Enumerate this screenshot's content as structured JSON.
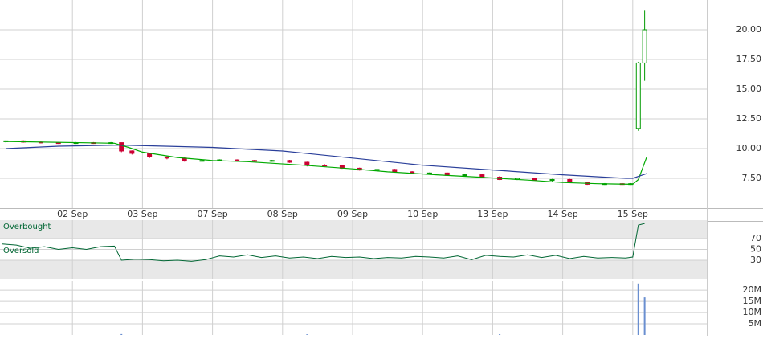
{
  "chart_data": [
    {
      "type": "candlestick",
      "x": [
        0.05,
        0.3,
        0.55,
        0.8,
        1.05,
        1.3,
        1.55,
        1.7,
        1.85,
        2.1,
        2.35,
        2.6,
        2.85,
        3.1,
        3.35,
        3.6,
        3.85,
        4.1,
        4.35,
        4.6,
        4.85,
        5.1,
        5.35,
        5.6,
        5.85,
        6.1,
        6.35,
        6.6,
        6.85,
        7.1,
        7.35,
        7.6,
        7.85,
        8.1,
        8.35,
        8.6,
        8.85,
        8.97,
        9.08,
        9.17
      ],
      "open": [
        10.6,
        10.65,
        10.55,
        10.5,
        10.45,
        10.5,
        10.45,
        10.5,
        9.8,
        9.6,
        9.3,
        9.2,
        8.95,
        9.0,
        9.05,
        9.0,
        8.95,
        9.0,
        8.85,
        8.6,
        8.55,
        8.35,
        8.2,
        8.25,
        8.05,
        7.9,
        7.95,
        7.75,
        7.8,
        7.6,
        7.4,
        7.5,
        7.35,
        7.4,
        7.15,
        7.0,
        7.05,
        7.0,
        11.7,
        17.2
      ],
      "high": [
        10.7,
        10.7,
        10.6,
        10.55,
        10.55,
        10.55,
        10.55,
        10.5,
        9.85,
        9.65,
        9.35,
        9.25,
        9.05,
        9.1,
        9.1,
        9.05,
        9.05,
        9.05,
        8.9,
        8.7,
        8.65,
        8.4,
        8.3,
        8.3,
        8.1,
        8.0,
        8.0,
        7.85,
        7.85,
        7.7,
        7.55,
        7.55,
        7.45,
        7.45,
        7.2,
        7.1,
        7.1,
        7.1,
        17.3,
        21.6
      ],
      "low": [
        10.5,
        10.5,
        10.45,
        10.4,
        10.4,
        10.4,
        10.4,
        9.7,
        9.5,
        9.2,
        9.1,
        8.9,
        8.85,
        8.95,
        8.95,
        8.9,
        8.9,
        8.8,
        8.5,
        8.5,
        8.3,
        8.15,
        8.1,
        8.0,
        7.85,
        7.8,
        7.7,
        7.65,
        7.55,
        7.35,
        7.35,
        7.3,
        7.25,
        7.1,
        6.95,
        6.95,
        6.95,
        6.95,
        11.5,
        15.7
      ],
      "close": [
        10.65,
        10.55,
        10.5,
        10.45,
        10.5,
        10.45,
        10.5,
        9.8,
        9.6,
        9.3,
        9.2,
        8.95,
        9.0,
        9.05,
        9.0,
        8.95,
        9.0,
        8.85,
        8.6,
        8.55,
        8.35,
        8.2,
        8.25,
        8.05,
        7.9,
        7.95,
        7.75,
        7.8,
        7.6,
        7.4,
        7.5,
        7.35,
        7.4,
        7.15,
        7.0,
        7.05,
        7.0,
        7.05,
        17.2,
        20.0
      ],
      "up_color": "#009900",
      "down_color": "#cc0033",
      "series": [
        {
          "color": "#00aa00",
          "x": [
            0.05,
            1.6,
            1.8,
            2.0,
            2.5,
            3.0,
            3.5,
            4.3,
            5.0,
            5.5,
            6.2,
            6.8,
            7.5,
            8.0,
            8.5,
            9.0,
            9.08,
            9.2
          ],
          "values": [
            10.6,
            10.45,
            10.1,
            9.7,
            9.25,
            9.0,
            8.9,
            8.6,
            8.3,
            8.05,
            7.8,
            7.6,
            7.35,
            7.15,
            7.05,
            7.0,
            7.4,
            9.3
          ]
        },
        {
          "color": "#2a3f9a",
          "x": [
            0.05,
            0.8,
            1.7,
            3.0,
            4.0,
            5.0,
            6.0,
            7.0,
            8.0,
            8.9,
            9.0,
            9.2
          ],
          "values": [
            10.0,
            10.2,
            10.3,
            10.1,
            9.8,
            9.2,
            8.6,
            8.2,
            7.8,
            7.5,
            7.5,
            7.9
          ]
        }
      ],
      "xlim": [
        0,
        10
      ],
      "xticks": [
        {
          "value": 1,
          "label": "02 Sep"
        },
        {
          "value": 2,
          "label": "03 Sep"
        },
        {
          "value": 3,
          "label": "07 Sep"
        },
        {
          "value": 4,
          "label": "08 Sep"
        },
        {
          "value": 5,
          "label": "09 Sep"
        },
        {
          "value": 6,
          "label": "10 Sep"
        },
        {
          "value": 7,
          "label": "13 Sep"
        },
        {
          "value": 8,
          "label": "14 Sep"
        },
        {
          "value": 9,
          "label": "15 Sep"
        }
      ],
      "ylim": [
        5,
        22.5
      ],
      "yticks": [
        {
          "value": 20,
          "label": "20.00"
        },
        {
          "value": 17.5,
          "label": "17.50"
        },
        {
          "value": 15,
          "label": "15.00"
        },
        {
          "value": 12.5,
          "label": "12.50"
        },
        {
          "value": 10,
          "label": "10.00"
        },
        {
          "value": 7.5,
          "label": "7.50"
        }
      ],
      "grid": true
    },
    {
      "type": "line",
      "x": [
        0,
        0.2,
        0.4,
        0.6,
        0.8,
        1.0,
        1.2,
        1.4,
        1.6,
        1.7,
        1.9,
        2.1,
        2.3,
        2.5,
        2.7,
        2.9,
        3.1,
        3.3,
        3.5,
        3.7,
        3.9,
        4.1,
        4.3,
        4.5,
        4.7,
        4.9,
        5.1,
        5.3,
        5.5,
        5.7,
        5.9,
        6.1,
        6.3,
        6.5,
        6.7,
        6.9,
        7.1,
        7.3,
        7.5,
        7.7,
        7.9,
        8.1,
        8.3,
        8.5,
        8.7,
        8.9,
        9.0,
        9.08,
        9.17
      ],
      "values": [
        60,
        58,
        52,
        55,
        50,
        53,
        50,
        55,
        56,
        30,
        32,
        31,
        29,
        30,
        28,
        31,
        38,
        36,
        40,
        35,
        38,
        34,
        36,
        33,
        37,
        35,
        36,
        33,
        35,
        34,
        37,
        36,
        34,
        38,
        31,
        39,
        37,
        36,
        40,
        35,
        39,
        33,
        37,
        34,
        35,
        34,
        36,
        95,
        98
      ],
      "color": "#006633",
      "ylim": [
        -4,
        104
      ],
      "yticks": [
        70,
        50,
        30
      ],
      "overbought": 70,
      "oversold": 30,
      "annotations": [
        "Overbought",
        "Oversold"
      ],
      "grid": true
    },
    {
      "type": "bar",
      "x": [
        1.7,
        4.35,
        7.1,
        9.08,
        9.17
      ],
      "values": [
        400000,
        300000,
        350000,
        23000000,
        16800000
      ],
      "color": "#6a8fd0",
      "ylim": [
        0,
        24000000
      ],
      "yticks": [
        {
          "value": 20000000,
          "label": "20M"
        },
        {
          "value": 15000000,
          "label": "15M"
        },
        {
          "value": 10000000,
          "label": "10M"
        },
        {
          "value": 5000000,
          "label": "5M"
        }
      ],
      "grid": true
    }
  ]
}
